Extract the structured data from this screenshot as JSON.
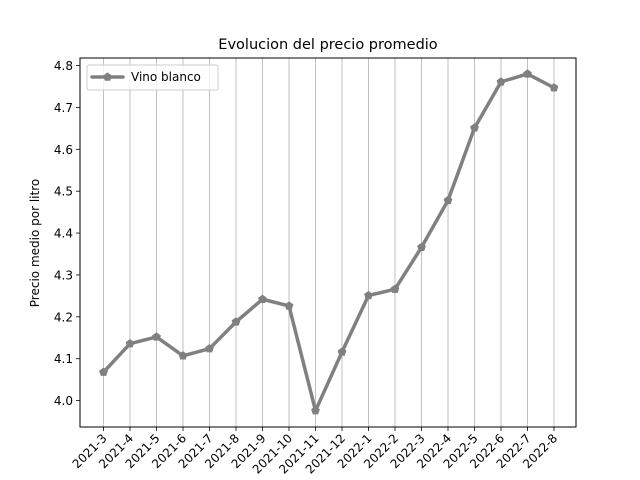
{
  "chart_data": {
    "type": "line",
    "title": "Evolucion del precio promedio",
    "xlabel": "",
    "ylabel": "Precio medio por litro",
    "categories": [
      "2021-3",
      "2021-4",
      "2021-5",
      "2021-6",
      "2021-7",
      "2021-8",
      "2021-9",
      "2021-10",
      "2021-11",
      "2021-12",
      "2022-1",
      "2022-2",
      "2022-3",
      "2022-4",
      "2022-5",
      "2022-6",
      "2022-7",
      "2022-8"
    ],
    "series": [
      {
        "name": "Vino blanco",
        "color": "#808080",
        "marker": "pentagon",
        "values": [
          4.068,
          4.136,
          4.152,
          4.107,
          4.124,
          4.188,
          4.242,
          4.226,
          3.976,
          4.116,
          4.251,
          4.266,
          4.366,
          4.478,
          4.651,
          4.761,
          4.78,
          4.747
        ]
      }
    ],
    "ylim": [
      3.937,
      4.818
    ],
    "yticks": [
      4.0,
      4.1,
      4.2,
      4.3,
      4.4,
      4.5,
      4.6,
      4.7,
      4.8
    ],
    "ytick_labels": [
      "4.0",
      "4.1",
      "4.2",
      "4.3",
      "4.4",
      "4.5",
      "4.6",
      "4.7",
      "4.8"
    ],
    "grid": "vertical",
    "legend_position": "upper-left"
  }
}
